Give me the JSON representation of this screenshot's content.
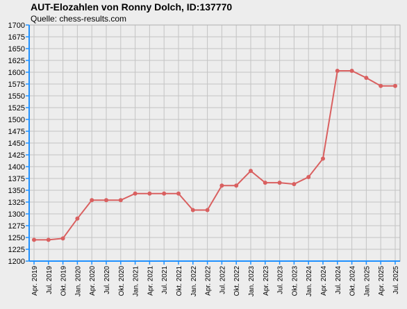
{
  "chart_data": {
    "type": "line",
    "title": "AUT-Elozahlen von Ronny Dolch, ID:137770",
    "subtitle": "Quelle: chess-results.com",
    "xlabel": "",
    "ylabel": "",
    "ylim": [
      1200,
      1700
    ],
    "ytick_step": 25,
    "grid": true,
    "line_color": "#d96060",
    "categories": [
      "Apr. 2019",
      "Jul. 2019",
      "Okt. 2019",
      "Jan. 2020",
      "Apr. 2020",
      "Jul. 2020",
      "Okt. 2020",
      "Jan. 2021",
      "Apr. 2021",
      "Jul. 2021",
      "Okt. 2021",
      "Jan. 2022",
      "Apr. 2022",
      "Jul. 2022",
      "Okt. 2022",
      "Jan. 2023",
      "Apr. 2023",
      "Jul. 2023",
      "Okt. 2023",
      "Jan. 2024",
      "Apr. 2024",
      "Jul. 2024",
      "Okt. 2024",
      "Jan. 2025",
      "Apr. 2025",
      "Jul. 2025"
    ],
    "values": [
      1245,
      1245,
      1248,
      1290,
      1329,
      1329,
      1329,
      1343,
      1343,
      1343,
      1343,
      1308,
      1308,
      1360,
      1360,
      1391,
      1366,
      1366,
      1363,
      1378,
      1417,
      1603,
      1603,
      1588,
      1571,
      1571
    ]
  }
}
